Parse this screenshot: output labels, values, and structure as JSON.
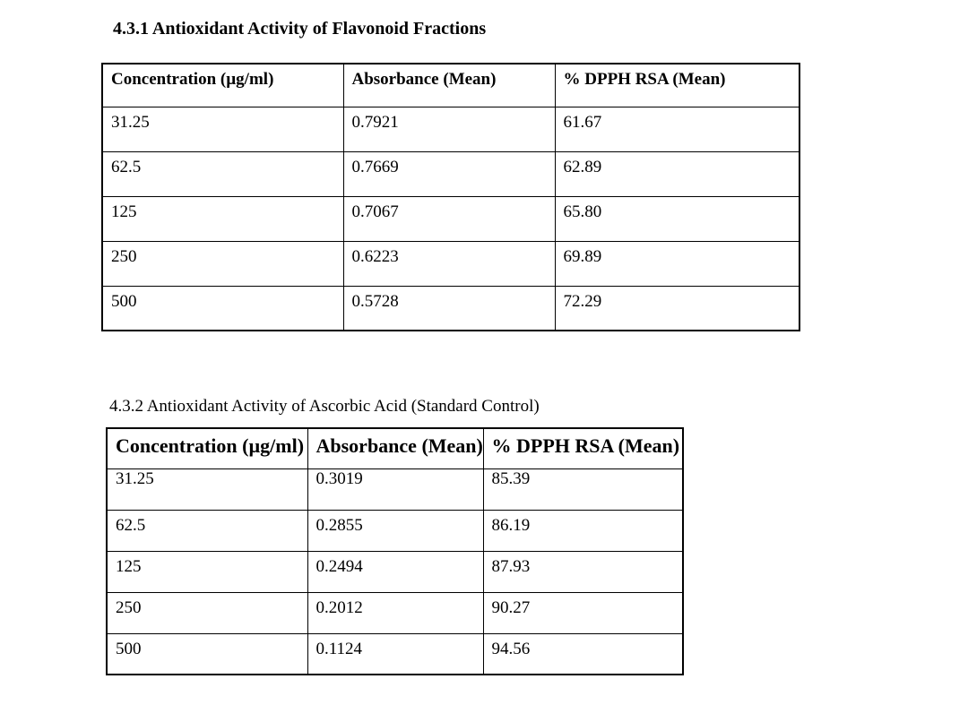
{
  "document": {
    "background_color": "#ffffff",
    "text_color": "#000000",
    "table_border_color": "#000000"
  },
  "sections": [
    {
      "heading": "4.3.1 Antioxidant Activity of Flavonoid Fractions",
      "table": {
        "columns": [
          "Concentration (µg/ml)",
          "Absorbance (Mean)",
          "% DPPH RSA (Mean)"
        ],
        "rows": [
          [
            "31.25",
            "0.7921",
            "61.67"
          ],
          [
            "62.5",
            "0.7669",
            "62.89"
          ],
          [
            "125",
            "0.7067",
            "65.80"
          ],
          [
            "250",
            "0.6223",
            "69.89"
          ],
          [
            "500",
            "0.5728",
            "72.29"
          ]
        ]
      }
    },
    {
      "heading": "4.3.2 Antioxidant Activity of Ascorbic Acid (Standard Control)",
      "table": {
        "columns": [
          "Concentration (µg/ml)",
          "Absorbance (Mean)",
          "% DPPH RSA (Mean)"
        ],
        "rows": [
          [
            "31.25",
            "0.3019",
            "85.39"
          ],
          [
            "62.5",
            "0.2855",
            "86.19"
          ],
          [
            "125",
            "0.2494",
            "87.93"
          ],
          [
            "250",
            "0.2012",
            "90.27"
          ],
          [
            "500",
            "0.1124",
            "94.56"
          ]
        ]
      }
    }
  ]
}
